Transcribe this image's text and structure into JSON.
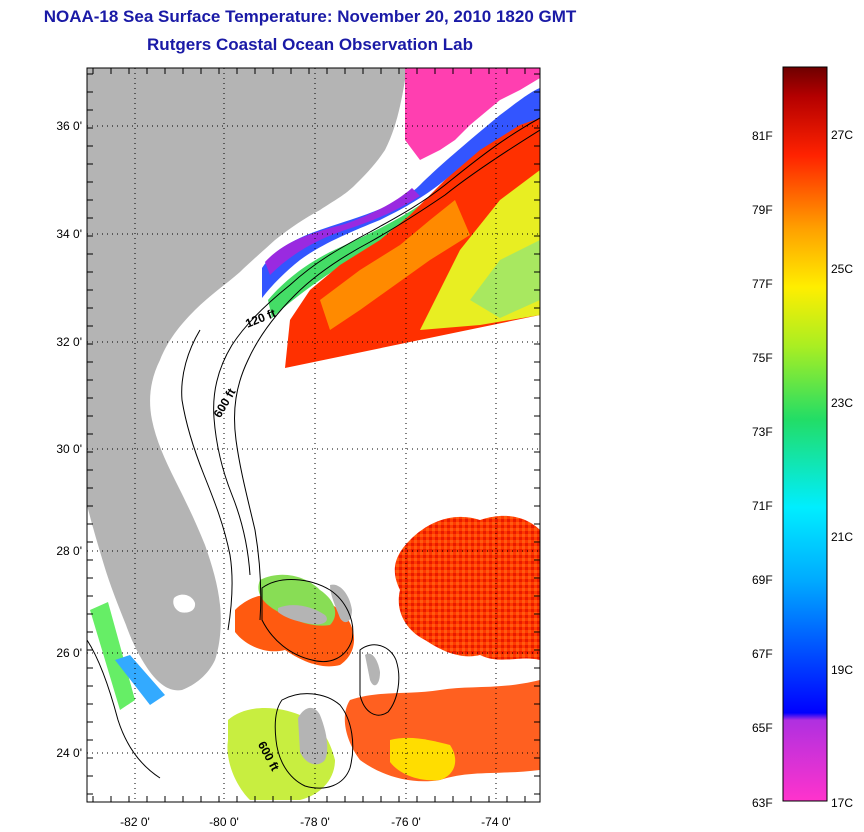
{
  "header": {
    "title": "NOAA-18 Sea Surface Temperature:  November 20, 2010 1820 GMT",
    "subtitle": "Rutgers Coastal Ocean Observation Lab"
  },
  "map": {
    "lat_labels": [
      "36 0'",
      "34 0'",
      "32 0'",
      "30 0'",
      "28 0'",
      "26 0'",
      "24 0'"
    ],
    "lon_labels": [
      "-82 0'",
      "-80 0'",
      "-78 0'",
      "-76 0'",
      "-74 0'"
    ],
    "contour_labels": [
      "120 ft",
      "600 ft",
      "600 ft"
    ],
    "colors": {
      "land": "#b4b4b4",
      "grid": "#000000"
    }
  },
  "colorbar": {
    "fahrenheit_labels": [
      "81F",
      "79F",
      "77F",
      "75F",
      "73F",
      "71F",
      "69F",
      "67F",
      "65F",
      "63F"
    ],
    "celsius_labels": [
      "27C",
      "25C",
      "23C",
      "21C",
      "19C",
      "17C"
    ],
    "colors": [
      "#ff33cc",
      "#7a22e0",
      "#0000ff",
      "#00e6ff",
      "#22dd55",
      "#ffee00",
      "#ff8800",
      "#ff2200",
      "#8b0000"
    ]
  }
}
